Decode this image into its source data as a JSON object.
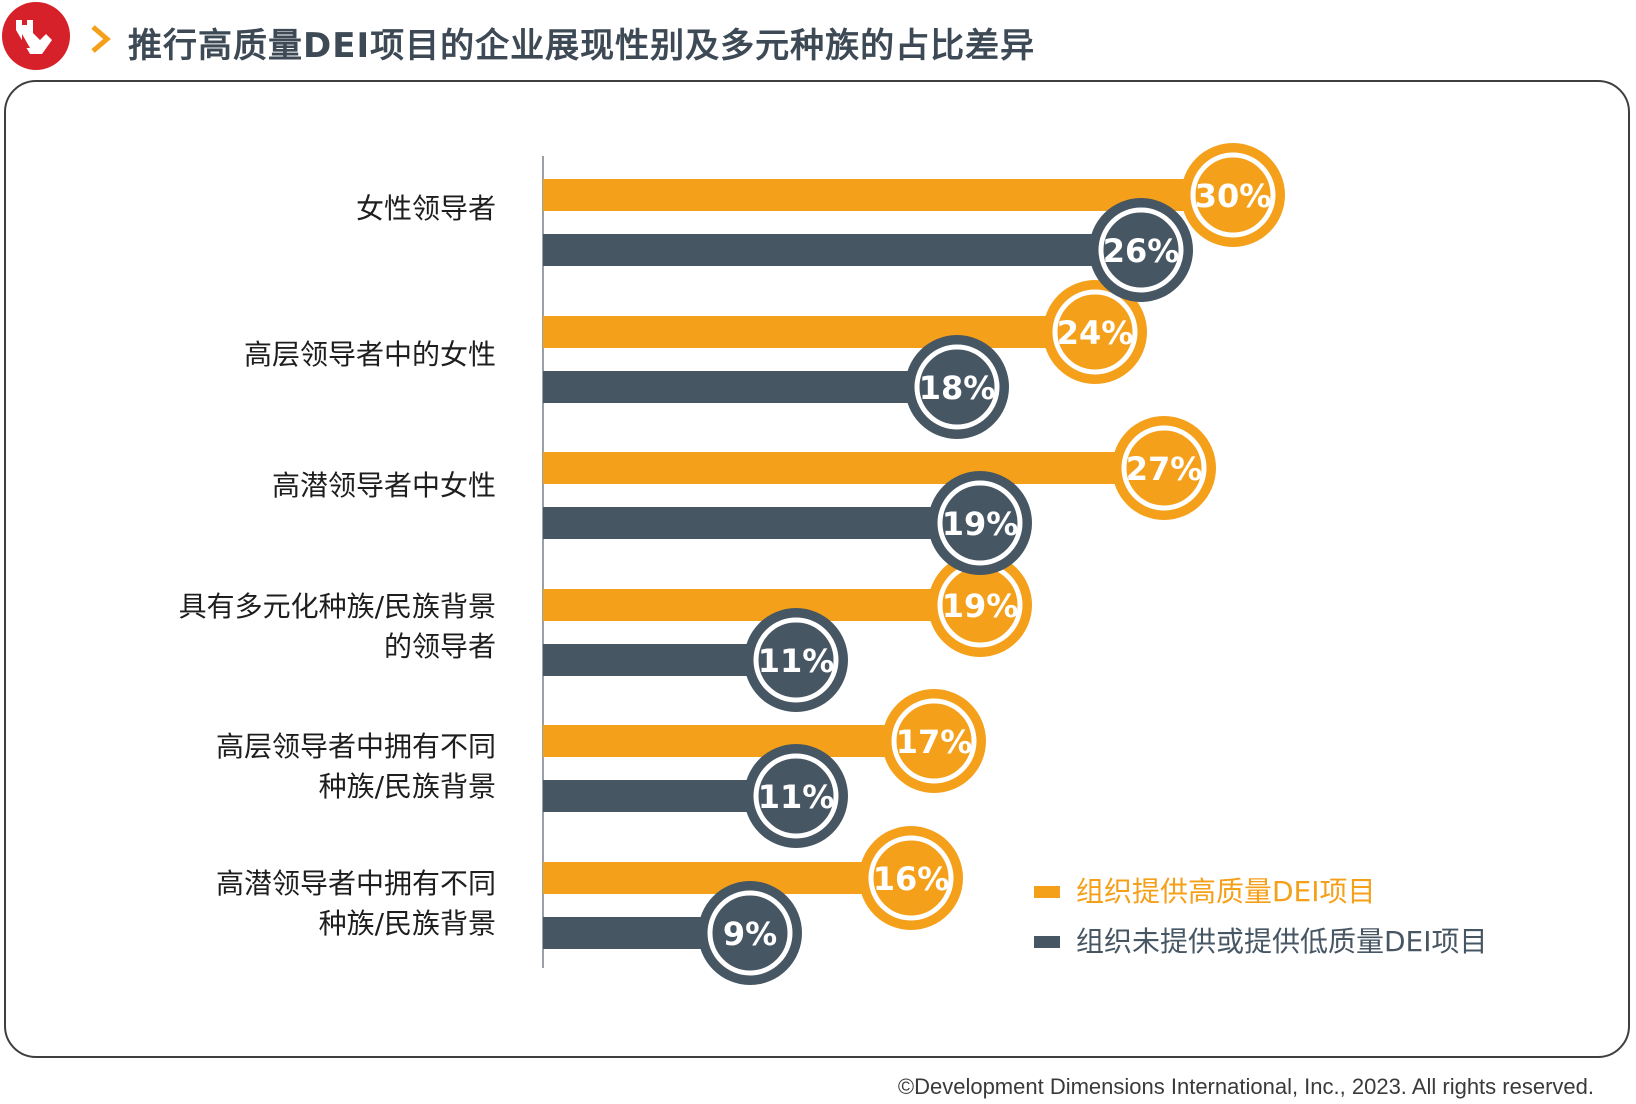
{
  "header": {
    "title": "推行高质量DEI项目的企业展现性别及多元种族的占比差异"
  },
  "colors": {
    "orange": "#f5a01a",
    "navy": "#475663",
    "logo_red": "#d6202a"
  },
  "icons": {
    "logo": "ddi-wall-logo-icon",
    "chevron": "chevron-right-icon"
  },
  "chart_data": {
    "type": "bar",
    "orientation": "horizontal",
    "categories": [
      [
        "女性领导者"
      ],
      [
        "高层领导者中的女性"
      ],
      [
        "高潜领导者中女性"
      ],
      [
        "具有多元化种族/民族背景",
        "的领导者"
      ],
      [
        "高层领导者中拥有不同",
        "种族/民族背景"
      ],
      [
        "高潜领导者中拥有不同",
        "种族/民族背景"
      ]
    ],
    "series": [
      {
        "name": "组织提供高质量DEI项目",
        "color": "#f5a01a",
        "values": [
          30,
          24,
          27,
          19,
          17,
          16
        ],
        "labels": [
          "30%",
          "24%",
          "27%",
          "19%",
          "17%",
          "16%"
        ]
      },
      {
        "name": "组织未提供或提供低质量DEI项目",
        "color": "#475663",
        "values": [
          26,
          18,
          19,
          11,
          11,
          9
        ],
        "labels": [
          "26%",
          "18%",
          "19%",
          "11%",
          "11%",
          "9%"
        ]
      }
    ],
    "xlim": [
      0,
      33
    ],
    "grid": false,
    "legend_position": "bottom-right"
  },
  "footer": {
    "copyright": "©Development Dimensions International, Inc., 2023. All rights reserved."
  }
}
